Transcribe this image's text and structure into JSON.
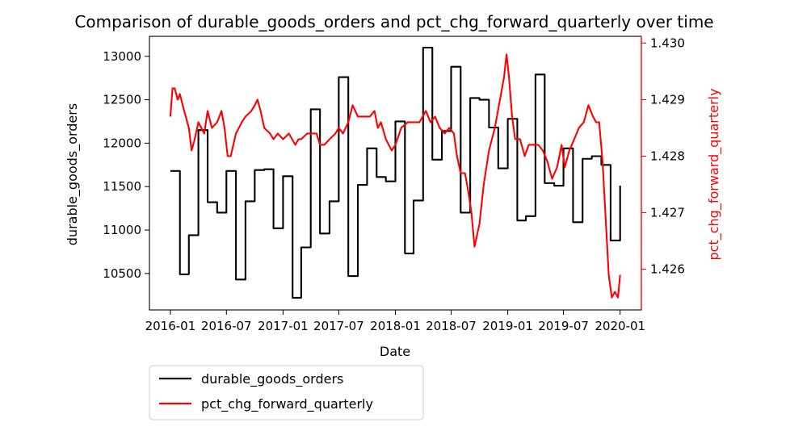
{
  "chart_data": {
    "type": "line",
    "title": "Comparison of durable_goods_orders and pct_chg_forward_quarterly over time",
    "xlabel": "Date",
    "ylabel_left": "durable_goods_orders",
    "ylabel_right": "pct_chg_forward_quarterly",
    "left_axis_color": "#000000",
    "right_axis_color": "#ff0000",
    "x_tick_labels": [
      "2016-01",
      "2016-07",
      "2017-01",
      "2017-07",
      "2018-01",
      "2018-07",
      "2019-01",
      "2019-07",
      "2020-01"
    ],
    "x_ticks": [
      "2016-01-01",
      "2016-07-01",
      "2017-01-01",
      "2017-07-01",
      "2018-01-01",
      "2018-07-01",
      "2019-01-01",
      "2019-07-01",
      "2020-01-01"
    ],
    "xlim": [
      "2015-10-25",
      "2020-03-10"
    ],
    "ylim_left": [
      10080,
      13230
    ],
    "ylim_right": [
      1.42528,
      1.43012
    ],
    "left_ticks": [
      10500,
      11000,
      11500,
      12000,
      12500,
      13000
    ],
    "left_tick_labels": [
      "10500",
      "11000",
      "11500",
      "12000",
      "12500",
      "13000"
    ],
    "right_ticks": [
      1.426,
      1.427,
      1.428,
      1.429,
      1.43
    ],
    "right_tick_labels": [
      "1.426",
      "1.427",
      "1.428",
      "1.429",
      "1.430"
    ],
    "legend": {
      "placement": "below-left",
      "entries": [
        "durable_goods_orders",
        "pct_chg_forward_quarterly"
      ]
    },
    "series": [
      {
        "name": "durable_goods_orders",
        "color": "#000000",
        "step": "post",
        "points": [
          [
            "2016-01-01",
            11680
          ],
          [
            "2016-02-01",
            10490
          ],
          [
            "2016-03-01",
            10940
          ],
          [
            "2016-04-01",
            12150
          ],
          [
            "2016-05-01",
            11320
          ],
          [
            "2016-06-01",
            11200
          ],
          [
            "2016-07-01",
            11680
          ],
          [
            "2016-08-01",
            10430
          ],
          [
            "2016-09-01",
            11330
          ],
          [
            "2016-10-01",
            11690
          ],
          [
            "2016-11-01",
            11700
          ],
          [
            "2016-12-01",
            11020
          ],
          [
            "2017-01-01",
            11620
          ],
          [
            "2017-02-01",
            10220
          ],
          [
            "2017-03-01",
            10800
          ],
          [
            "2017-04-01",
            12390
          ],
          [
            "2017-05-01",
            10960
          ],
          [
            "2017-06-01",
            11330
          ],
          [
            "2017-07-01",
            12760
          ],
          [
            "2017-08-01",
            10470
          ],
          [
            "2017-09-01",
            11520
          ],
          [
            "2017-10-01",
            11940
          ],
          [
            "2017-11-01",
            11610
          ],
          [
            "2017-12-01",
            11560
          ],
          [
            "2018-01-01",
            12250
          ],
          [
            "2018-02-01",
            10730
          ],
          [
            "2018-03-01",
            11340
          ],
          [
            "2018-04-01",
            13100
          ],
          [
            "2018-05-01",
            11810
          ],
          [
            "2018-06-01",
            12140
          ],
          [
            "2018-07-01",
            12880
          ],
          [
            "2018-08-01",
            11200
          ],
          [
            "2018-09-01",
            12520
          ],
          [
            "2018-10-01",
            12500
          ],
          [
            "2018-11-01",
            12180
          ],
          [
            "2018-12-01",
            11710
          ],
          [
            "2019-01-01",
            12280
          ],
          [
            "2019-02-01",
            11110
          ],
          [
            "2019-03-01",
            11160
          ],
          [
            "2019-04-01",
            12790
          ],
          [
            "2019-05-01",
            11540
          ],
          [
            "2019-06-01",
            11510
          ],
          [
            "2019-07-01",
            11940
          ],
          [
            "2019-08-01",
            11090
          ],
          [
            "2019-09-01",
            11820
          ],
          [
            "2019-10-01",
            11850
          ],
          [
            "2019-11-01",
            11750
          ],
          [
            "2019-12-01",
            10880
          ],
          [
            "2020-01-01",
            11510
          ]
        ]
      },
      {
        "name": "pct_chg_forward_quarterly",
        "color": "#ff0000",
        "points": [
          [
            "2016-01-01",
            1.4287
          ],
          [
            "2016-01-08",
            1.4292
          ],
          [
            "2016-01-15",
            1.4292
          ],
          [
            "2016-01-25",
            1.429
          ],
          [
            "2016-02-01",
            1.4291
          ],
          [
            "2016-02-10",
            1.4289
          ],
          [
            "2016-02-20",
            1.4287
          ],
          [
            "2016-03-01",
            1.4285
          ],
          [
            "2016-03-10",
            1.4281
          ],
          [
            "2016-03-20",
            1.4283
          ],
          [
            "2016-04-01",
            1.4286
          ],
          [
            "2016-04-20",
            1.4284
          ],
          [
            "2016-05-01",
            1.4288
          ],
          [
            "2016-05-15",
            1.4285
          ],
          [
            "2016-06-01",
            1.4286
          ],
          [
            "2016-06-15",
            1.4288
          ],
          [
            "2016-06-25",
            1.4285
          ],
          [
            "2016-07-05",
            1.428
          ],
          [
            "2016-07-15",
            1.428
          ],
          [
            "2016-08-01",
            1.4284
          ],
          [
            "2016-08-20",
            1.4286
          ],
          [
            "2016-09-01",
            1.4287
          ],
          [
            "2016-09-20",
            1.4288
          ],
          [
            "2016-10-01",
            1.4289
          ],
          [
            "2016-10-10",
            1.429
          ],
          [
            "2016-10-20",
            1.4288
          ],
          [
            "2016-11-01",
            1.4285
          ],
          [
            "2016-11-20",
            1.4284
          ],
          [
            "2016-12-01",
            1.4283
          ],
          [
            "2016-12-15",
            1.4284
          ],
          [
            "2017-01-01",
            1.4283
          ],
          [
            "2017-01-20",
            1.4284
          ],
          [
            "2017-02-10",
            1.4282
          ],
          [
            "2017-02-20",
            1.4283
          ],
          [
            "2017-03-01",
            1.4283
          ],
          [
            "2017-03-20",
            1.4284
          ],
          [
            "2017-04-01",
            1.4284
          ],
          [
            "2017-04-20",
            1.4284
          ],
          [
            "2017-05-01",
            1.4282
          ],
          [
            "2017-05-15",
            1.4282
          ],
          [
            "2017-06-01",
            1.4283
          ],
          [
            "2017-06-20",
            1.4284
          ],
          [
            "2017-07-01",
            1.4285
          ],
          [
            "2017-07-15",
            1.4284
          ],
          [
            "2017-08-01",
            1.4286
          ],
          [
            "2017-08-15",
            1.4289
          ],
          [
            "2017-09-01",
            1.4287
          ],
          [
            "2017-09-20",
            1.4287
          ],
          [
            "2017-10-10",
            1.4287
          ],
          [
            "2017-10-25",
            1.4288
          ],
          [
            "2017-11-05",
            1.4285
          ],
          [
            "2017-11-15",
            1.4286
          ],
          [
            "2017-12-01",
            1.4283
          ],
          [
            "2017-12-20",
            1.4281
          ],
          [
            "2018-01-01",
            1.4282
          ],
          [
            "2018-01-20",
            1.4285
          ],
          [
            "2018-02-10",
            1.4286
          ],
          [
            "2018-03-01",
            1.4286
          ],
          [
            "2018-03-20",
            1.4286
          ],
          [
            "2018-04-10",
            1.4288
          ],
          [
            "2018-04-25",
            1.4286
          ],
          [
            "2018-05-10",
            1.4287
          ],
          [
            "2018-05-25",
            1.4285
          ],
          [
            "2018-06-10",
            1.4284
          ],
          [
            "2018-06-25",
            1.4285
          ],
          [
            "2018-07-10",
            1.4284
          ],
          [
            "2018-07-20",
            1.428
          ],
          [
            "2018-08-01",
            1.4277
          ],
          [
            "2018-08-15",
            1.4277
          ],
          [
            "2018-08-25",
            1.4274
          ],
          [
            "2018-09-05",
            1.427
          ],
          [
            "2018-09-15",
            1.4264
          ],
          [
            "2018-10-01",
            1.4268
          ],
          [
            "2018-10-15",
            1.4275
          ],
          [
            "2018-11-01",
            1.4281
          ],
          [
            "2018-11-20",
            1.4285
          ],
          [
            "2018-12-10",
            1.4291
          ],
          [
            "2018-12-20",
            1.4294
          ],
          [
            "2018-12-28",
            1.4298
          ],
          [
            "2019-01-05",
            1.4294
          ],
          [
            "2019-01-15",
            1.4287
          ],
          [
            "2019-01-25",
            1.4283
          ],
          [
            "2019-02-10",
            1.4283
          ],
          [
            "2019-02-25",
            1.428
          ],
          [
            "2019-03-10",
            1.4282
          ],
          [
            "2019-03-25",
            1.4282
          ],
          [
            "2019-04-10",
            1.4282
          ],
          [
            "2019-04-25",
            1.4281
          ],
          [
            "2019-05-10",
            1.4279
          ],
          [
            "2019-05-25",
            1.4276
          ],
          [
            "2019-06-10",
            1.4278
          ],
          [
            "2019-06-25",
            1.4282
          ],
          [
            "2019-07-05",
            1.4278
          ],
          [
            "2019-07-20",
            1.4281
          ],
          [
            "2019-08-05",
            1.4283
          ],
          [
            "2019-08-20",
            1.4285
          ],
          [
            "2019-09-05",
            1.4286
          ],
          [
            "2019-09-20",
            1.4289
          ],
          [
            "2019-10-05",
            1.4287
          ],
          [
            "2019-10-15",
            1.4286
          ],
          [
            "2019-10-25",
            1.4286
          ],
          [
            "2019-11-05",
            1.4279
          ],
          [
            "2019-11-15",
            1.4269
          ],
          [
            "2019-11-25",
            1.4259
          ],
          [
            "2019-12-05",
            1.4255
          ],
          [
            "2019-12-15",
            1.4256
          ],
          [
            "2019-12-25",
            1.4255
          ],
          [
            "2020-01-01",
            1.4259
          ]
        ]
      }
    ]
  }
}
